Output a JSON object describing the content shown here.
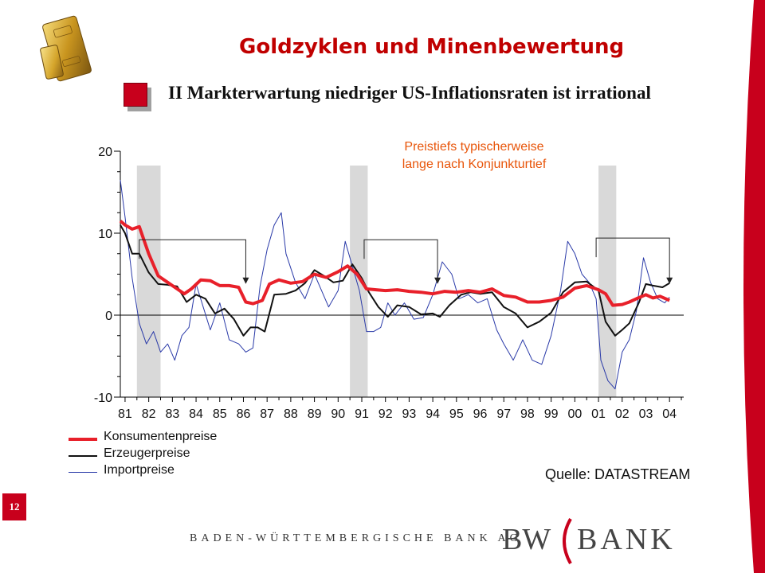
{
  "header": {
    "title": "Goldzyklen und Minenbewertung",
    "subtitle": "II Markterwartung niedriger US-Inflationsraten ist irrational"
  },
  "annotation": {
    "line1": "Preistiefs typischerweise",
    "line2": "lange nach Konjunkturtief"
  },
  "source": "Quelle:  DATASTREAM",
  "page_number": "12",
  "footer": {
    "bank_name": "BADEN-WÜRTTEMBERGISCHE BANK AG",
    "logo_left": "BW",
    "logo_right": "BANK"
  },
  "colors": {
    "consumer": "#e8202a",
    "producer": "#111111",
    "import": "#2a3aa8",
    "recession": "#d9d9d9",
    "accent": "#c8001c"
  },
  "chart_data": {
    "type": "line",
    "title": "",
    "xlabel": "",
    "ylabel": "",
    "xlim": [
      1980.8,
      2004.6
    ],
    "ylim": [
      -10,
      20
    ],
    "yticks": [
      20,
      10,
      0,
      -10
    ],
    "xticks": [
      {
        "value": 1981,
        "label": "81"
      },
      {
        "value": 1982,
        "label": "82"
      },
      {
        "value": 1983,
        "label": "83"
      },
      {
        "value": 1984,
        "label": "84"
      },
      {
        "value": 1985,
        "label": "85"
      },
      {
        "value": 1986,
        "label": "86"
      },
      {
        "value": 1987,
        "label": "87"
      },
      {
        "value": 1988,
        "label": "88"
      },
      {
        "value": 1989,
        "label": "89"
      },
      {
        "value": 1990,
        "label": "90"
      },
      {
        "value": 1991,
        "label": "91"
      },
      {
        "value": 1992,
        "label": "92"
      },
      {
        "value": 1993,
        "label": "93"
      },
      {
        "value": 1994,
        "label": "94"
      },
      {
        "value": 1995,
        "label": "95"
      },
      {
        "value": 1996,
        "label": "96"
      },
      {
        "value": 1997,
        "label": "97"
      },
      {
        "value": 1998,
        "label": "98"
      },
      {
        "value": 1999,
        "label": "99"
      },
      {
        "value": 2000,
        "label": "00"
      },
      {
        "value": 2001,
        "label": "01"
      },
      {
        "value": 2002,
        "label": "02"
      },
      {
        "value": 2003,
        "label": "03"
      },
      {
        "value": 2004,
        "label": "04"
      }
    ],
    "recession_bands": [
      [
        1981.5,
        1982.5
      ],
      [
        1990.5,
        1991.25
      ],
      [
        2001.0,
        2001.75
      ]
    ],
    "brackets": [
      {
        "start": 1981.6,
        "end": 1986.1,
        "level": 9.2
      },
      {
        "start": 1991.1,
        "end": 1994.2,
        "level": 9.2
      },
      {
        "start": 2000.9,
        "end": 2004.0,
        "level": 9.4
      }
    ],
    "legend": {
      "position": "bottom-left"
    },
    "series": [
      {
        "name": "Konsumentenpreise",
        "key": "consumer",
        "x": [
          1980.8,
          1981.0,
          1981.3,
          1981.6,
          1982.0,
          1982.4,
          1982.8,
          1983.2,
          1983.5,
          1983.8,
          1984.2,
          1984.6,
          1985.0,
          1985.4,
          1985.8,
          1986.1,
          1986.4,
          1986.8,
          1987.1,
          1987.5,
          1988.0,
          1988.5,
          1989.0,
          1989.5,
          1990.0,
          1990.4,
          1990.8,
          1991.2,
          1991.6,
          1992.0,
          1992.5,
          1993.0,
          1993.5,
          1994.0,
          1994.5,
          1995.0,
          1995.5,
          1996.0,
          1996.5,
          1997.0,
          1997.5,
          1998.0,
          1998.5,
          1999.0,
          1999.5,
          2000.0,
          2000.5,
          2001.0,
          2001.3,
          2001.6,
          2002.0,
          2002.3,
          2002.6,
          2003.0,
          2003.3,
          2003.6,
          2004.0
        ],
        "values": [
          11.5,
          11.0,
          10.5,
          10.8,
          7.5,
          4.8,
          4.0,
          3.2,
          2.6,
          3.2,
          4.3,
          4.2,
          3.6,
          3.6,
          3.4,
          1.6,
          1.4,
          1.8,
          3.8,
          4.3,
          3.9,
          4.1,
          5.0,
          4.6,
          5.3,
          6.0,
          5.0,
          3.2,
          3.1,
          3.0,
          3.1,
          2.9,
          2.8,
          2.6,
          2.9,
          2.8,
          3.0,
          2.8,
          3.2,
          2.4,
          2.2,
          1.6,
          1.6,
          1.8,
          2.2,
          3.3,
          3.6,
          3.1,
          2.6,
          1.2,
          1.3,
          1.6,
          2.0,
          2.5,
          2.1,
          2.3,
          1.8
        ]
      },
      {
        "name": "Erzeugerpreise",
        "key": "producer",
        "x": [
          1980.8,
          1981.0,
          1981.3,
          1981.6,
          1982.0,
          1982.4,
          1982.8,
          1983.2,
          1983.6,
          1984.0,
          1984.4,
          1984.8,
          1985.2,
          1985.6,
          1986.0,
          1986.3,
          1986.6,
          1986.9,
          1987.3,
          1987.8,
          1988.2,
          1988.6,
          1989.0,
          1989.4,
          1989.8,
          1990.2,
          1990.6,
          1991.0,
          1991.3,
          1991.7,
          1992.1,
          1992.5,
          1993.0,
          1993.5,
          1994.0,
          1994.3,
          1994.7,
          1995.2,
          1995.6,
          1996.0,
          1996.5,
          1997.0,
          1997.5,
          1998.0,
          1998.5,
          1999.0,
          1999.5,
          2000.0,
          2000.5,
          2001.0,
          2001.3,
          2001.7,
          2002.0,
          2002.3,
          2002.7,
          2003.0,
          2003.3,
          2003.7,
          2004.0
        ],
        "values": [
          11.0,
          10.0,
          7.5,
          7.5,
          5.2,
          3.8,
          3.7,
          3.5,
          1.6,
          2.5,
          2.0,
          0.2,
          0.8,
          -0.5,
          -2.5,
          -1.5,
          -1.5,
          -2.0,
          2.5,
          2.6,
          3.0,
          3.9,
          5.5,
          4.8,
          4.0,
          4.2,
          6.2,
          4.5,
          2.8,
          1.0,
          -0.2,
          1.2,
          1.0,
          0.1,
          0.2,
          -0.2,
          1.2,
          2.5,
          2.8,
          2.6,
          2.8,
          1.0,
          0.2,
          -1.5,
          -0.8,
          0.3,
          2.8,
          4.0,
          4.1,
          3.0,
          -0.8,
          -2.5,
          -1.8,
          -1.0,
          1.5,
          3.8,
          3.6,
          3.4,
          3.9
        ]
      },
      {
        "name": "Importpreise",
        "key": "import",
        "x": [
          1980.8,
          1981.0,
          1981.3,
          1981.6,
          1981.9,
          1982.2,
          1982.5,
          1982.8,
          1983.1,
          1983.4,
          1983.7,
          1984.0,
          1984.3,
          1984.6,
          1985.0,
          1985.4,
          1985.8,
          1986.1,
          1986.4,
          1986.7,
          1987.0,
          1987.3,
          1987.6,
          1987.8,
          1988.2,
          1988.6,
          1989.0,
          1989.3,
          1989.6,
          1990.0,
          1990.3,
          1990.6,
          1990.9,
          1991.2,
          1991.5,
          1991.8,
          1992.1,
          1992.4,
          1992.8,
          1993.2,
          1993.6,
          1994.0,
          1994.4,
          1994.8,
          1995.1,
          1995.5,
          1995.9,
          1996.3,
          1996.7,
          1997.0,
          1997.4,
          1997.8,
          1998.2,
          1998.6,
          1999.0,
          1999.4,
          1999.7,
          2000.0,
          2000.3,
          2000.6,
          2000.9,
          2001.1,
          2001.4,
          2001.7,
          2002.0,
          2002.3,
          2002.6,
          2002.9,
          2003.2,
          2003.5,
          2003.8,
          2004.0
        ],
        "values": [
          16.5,
          12.0,
          4.5,
          -1.0,
          -3.5,
          -2.0,
          -4.5,
          -3.5,
          -5.5,
          -2.5,
          -1.5,
          3.8,
          1.0,
          -1.8,
          1.5,
          -3.0,
          -3.5,
          -4.5,
          -4.0,
          3.5,
          8.0,
          11.0,
          12.5,
          7.5,
          4.0,
          2.0,
          5.0,
          3.0,
          1.0,
          3.0,
          9.0,
          6.0,
          3.0,
          -2.0,
          -2.0,
          -1.5,
          1.5,
          0.0,
          1.5,
          -0.5,
          -0.3,
          2.5,
          6.5,
          5.0,
          2.0,
          2.5,
          1.5,
          2.0,
          -1.8,
          -3.5,
          -5.5,
          -3.0,
          -5.5,
          -6.0,
          -2.5,
          3.0,
          9.0,
          7.5,
          5.0,
          4.0,
          2.0,
          -5.5,
          -8.0,
          -9.0,
          -4.5,
          -3.0,
          0.5,
          7.0,
          4.0,
          2.0,
          1.5,
          2.2
        ]
      }
    ]
  }
}
